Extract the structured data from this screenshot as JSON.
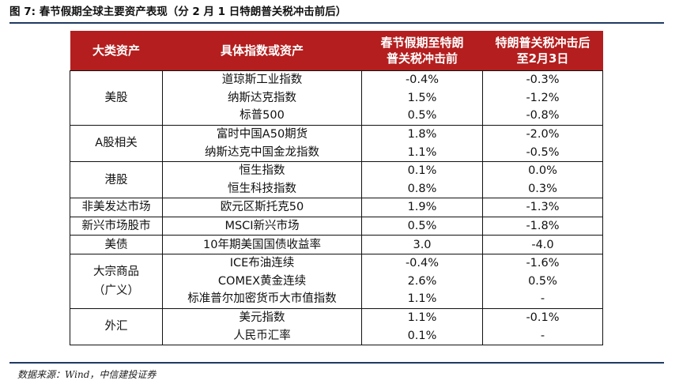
{
  "title": "图 7: 春节假期全球主要资产表现（分 2 月 1 日特朗普关税冲击前后）",
  "headers": {
    "category": "大类资产",
    "asset": "具体指数或资产",
    "before_line1": "春节假期至特朗",
    "before_line2": "普关税冲击前",
    "after_line1": "特朗普关税冲击后",
    "after_line2": "至2月3日"
  },
  "groups": [
    {
      "category": "美股",
      "rows": [
        {
          "asset": "道琼斯工业指数",
          "before": "-0.4%",
          "after": "-0.3%"
        },
        {
          "asset": "纳斯达克指数",
          "before": "1.5%",
          "after": "-1.2%"
        },
        {
          "asset": "标普500",
          "before": "0.5%",
          "after": "-0.8%"
        }
      ]
    },
    {
      "category": "A股相关",
      "rows": [
        {
          "asset": "富时中国A50期货",
          "before": "1.8%",
          "after": "-2.0%"
        },
        {
          "asset": "纳斯达克中国金龙指数",
          "before": "1.1%",
          "after": "-0.5%"
        }
      ]
    },
    {
      "category": "港股",
      "rows": [
        {
          "asset": "恒生指数",
          "before": "0.1%",
          "after": "0.0%"
        },
        {
          "asset": "恒生科技指数",
          "before": "0.8%",
          "after": "0.3%"
        }
      ]
    },
    {
      "category": "非美发达市场",
      "rows": [
        {
          "asset": "欧元区斯托克50",
          "before": "1.9%",
          "after": "-1.3%"
        }
      ]
    },
    {
      "category": "新兴市场股市",
      "rows": [
        {
          "asset": "MSCI新兴市场",
          "before": "0.5%",
          "after": "-1.8%"
        }
      ]
    },
    {
      "category": "美债",
      "rows": [
        {
          "asset": "10年期美国国债收益率",
          "before": "3.0",
          "after": "-4.0"
        }
      ]
    },
    {
      "category": "大宗商品",
      "category_line2": "（广义）",
      "rows": [
        {
          "asset": "ICE布油连续",
          "before": "-0.4%",
          "after": "-1.6%"
        },
        {
          "asset": "COMEX黄金连续",
          "before": "2.6%",
          "after": "0.5%"
        },
        {
          "asset": "标准普尔加密货币大市值指数",
          "before": "1.1%",
          "after": "-"
        }
      ]
    },
    {
      "category": "外汇",
      "rows": [
        {
          "asset": "美元指数",
          "before": "1.1%",
          "after": "-0.1%"
        },
        {
          "asset": "人民币汇率",
          "before": "0.1%",
          "after": "-"
        }
      ]
    }
  ],
  "colors": {
    "header_bg": "#b41e1e",
    "positive": "#c62828",
    "negative": "#2e9e3e",
    "rule": "#1f3a63"
  },
  "source": "数据来源：Wind，中信建投证券"
}
